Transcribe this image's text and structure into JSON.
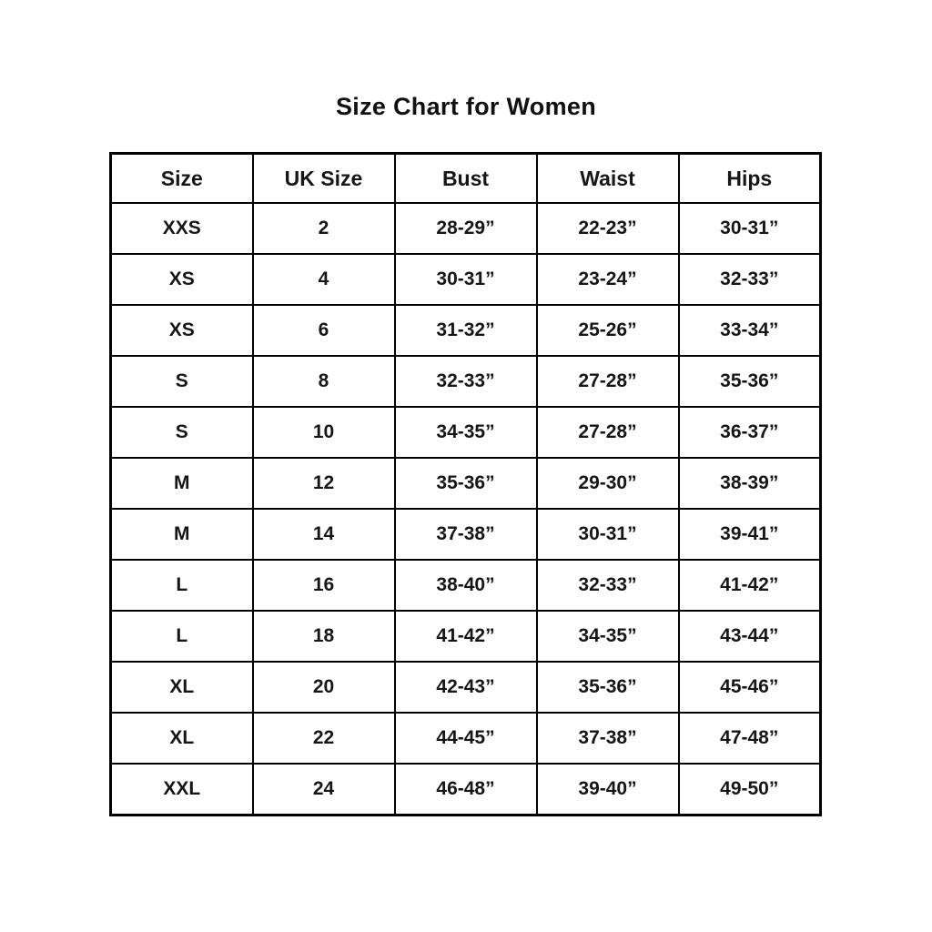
{
  "title": "Size Chart for Women",
  "chart_data": {
    "type": "table",
    "title": "Size Chart for Women",
    "columns": [
      "Size",
      "UK Size",
      "Bust",
      "Waist",
      "Hips"
    ],
    "rows": [
      [
        "XXS",
        "2",
        "28-29”",
        "22-23”",
        "30-31”"
      ],
      [
        "XS",
        "4",
        "30-31”",
        "23-24”",
        "32-33”"
      ],
      [
        "XS",
        "6",
        "31-32”",
        "25-26”",
        "33-34”"
      ],
      [
        "S",
        "8",
        "32-33”",
        "27-28”",
        "35-36”"
      ],
      [
        "S",
        "10",
        "34-35”",
        "27-28”",
        "36-37”"
      ],
      [
        "M",
        "12",
        "35-36”",
        "29-30”",
        "38-39”"
      ],
      [
        "M",
        "14",
        "37-38”",
        "30-31”",
        "39-41”"
      ],
      [
        "L",
        "16",
        "38-40”",
        "32-33”",
        "41-42”"
      ],
      [
        "L",
        "18",
        "41-42”",
        "34-35”",
        "43-44”"
      ],
      [
        "XL",
        "20",
        "42-43”",
        "35-36”",
        "45-46”"
      ],
      [
        "XL",
        "22",
        "44-45”",
        "37-38”",
        "47-48”"
      ],
      [
        "XXL",
        "24",
        "46-48”",
        "39-40”",
        "49-50”"
      ]
    ],
    "layout": {
      "grid": "all-borders",
      "border_color": "#000000",
      "background": "#ffffff",
      "text_color": "#161616",
      "units": "inches"
    }
  }
}
